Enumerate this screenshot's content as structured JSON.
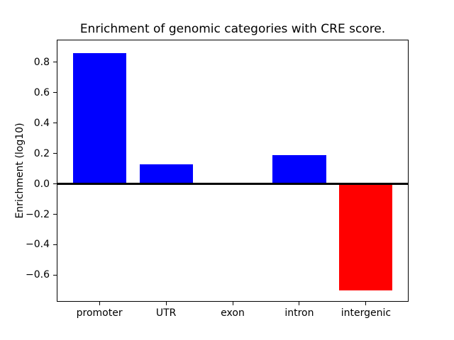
{
  "figure": {
    "background_color": "#ffffff"
  },
  "chart_data": {
    "type": "bar",
    "title": "Enrichment of genomic categories with CRE score.",
    "xlabel": "",
    "ylabel": "Enrichment (log10)",
    "categories": [
      "promoter",
      "UTR",
      "exon",
      "intron",
      "intergenic"
    ],
    "values": [
      0.86,
      0.13,
      0.0,
      0.19,
      -0.7
    ],
    "bar_colors": [
      "#0000ff",
      "#0000ff",
      "#0000ff",
      "#0000ff",
      "#ff0000"
    ],
    "positive_color": "#0000ff",
    "negative_color": "#ff0000",
    "bar_width": 0.8,
    "xlim": [
      -0.64,
      4.64
    ],
    "ylim": [
      -0.775,
      0.947
    ],
    "yticks": [
      {
        "value": 0.8,
        "label": "0.8"
      },
      {
        "value": 0.6,
        "label": "0.6"
      },
      {
        "value": 0.4,
        "label": "0.4"
      },
      {
        "value": 0.2,
        "label": "0.2"
      },
      {
        "value": 0.0,
        "label": "0.0"
      },
      {
        "value": -0.2,
        "label": "−0.2"
      },
      {
        "value": -0.4,
        "label": "−0.4"
      },
      {
        "value": -0.6,
        "label": "−0.6"
      }
    ],
    "grid": false,
    "legend": false,
    "zero_line": true,
    "axis_color": "#000000",
    "plot_background": "#ffffff"
  }
}
